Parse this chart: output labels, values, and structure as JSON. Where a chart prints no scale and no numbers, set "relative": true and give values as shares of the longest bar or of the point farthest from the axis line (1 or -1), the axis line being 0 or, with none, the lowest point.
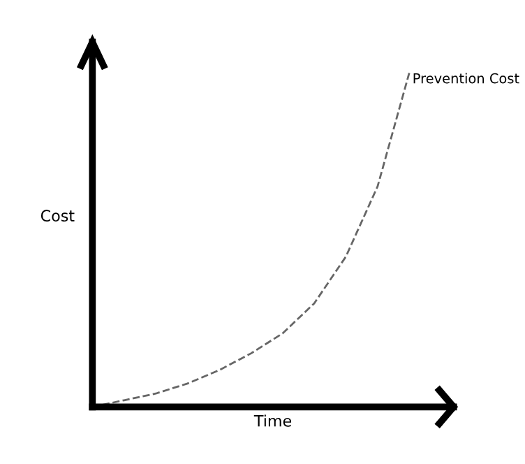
{
  "chart_data": {
    "type": "line",
    "relative": true,
    "xlabel": "Time",
    "ylabel": "Cost",
    "categories": [
      null,
      null,
      null,
      null,
      null,
      null,
      null,
      null,
      null,
      null,
      null
    ],
    "series": [
      {
        "name": "Prevention Cost",
        "color": "#666666",
        "values": [
          0,
          0.02,
          0.04,
          0.07,
          0.11,
          0.16,
          0.22,
          0.31,
          0.45,
          0.66,
          1.0
        ]
      }
    ],
    "line_style": "dashed",
    "marker": "none",
    "legend": false
  }
}
